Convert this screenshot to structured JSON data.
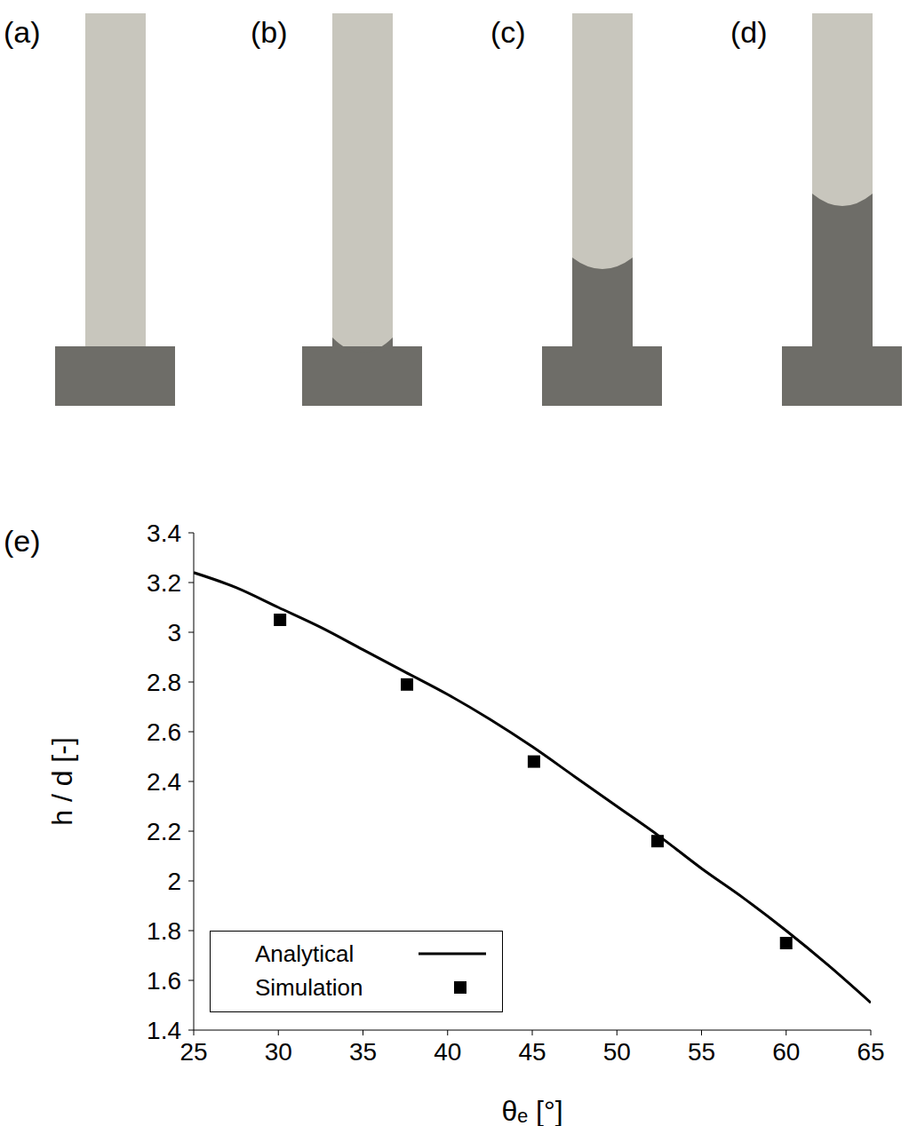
{
  "panels": [
    "(a)",
    "(b)",
    "(c)",
    "(d)"
  ],
  "chart_data": {
    "type": "line",
    "label": "(e)",
    "x_label": "θₑ [°]",
    "y_label": "h / d [-]",
    "xlim": [
      25,
      65
    ],
    "xticks": [
      25,
      30,
      35,
      40,
      45,
      50,
      55,
      60,
      65
    ],
    "ylim": [
      1.4,
      3.4
    ],
    "yticks": [
      1.4,
      1.6,
      1.8,
      2,
      2.2,
      2.4,
      2.6,
      2.8,
      3,
      3.2,
      3.4
    ],
    "grid": false,
    "legend": "lower left",
    "series": [
      {
        "name": "Analytical",
        "type": "line",
        "color": "#000000",
        "line_style": "solid",
        "x": [
          25,
          27.5,
          30,
          32.5,
          35,
          37.5,
          40,
          42.5,
          45,
          47.5,
          50,
          52.5,
          55,
          57.5,
          60,
          62.5,
          65
        ],
        "values": [
          3.24,
          3.18,
          3.1,
          3.02,
          2.93,
          2.84,
          2.75,
          2.65,
          2.54,
          2.42,
          2.3,
          2.18,
          2.05,
          1.93,
          1.8,
          1.66,
          1.51
        ]
      },
      {
        "name": "Simulation",
        "type": "scatter",
        "color": "#000000",
        "marker": "square",
        "x": [
          30.1,
          37.6,
          45.1,
          52.4,
          60
        ],
        "values": [
          3.05,
          2.79,
          2.48,
          2.16,
          1.75
        ]
      }
    ]
  }
}
